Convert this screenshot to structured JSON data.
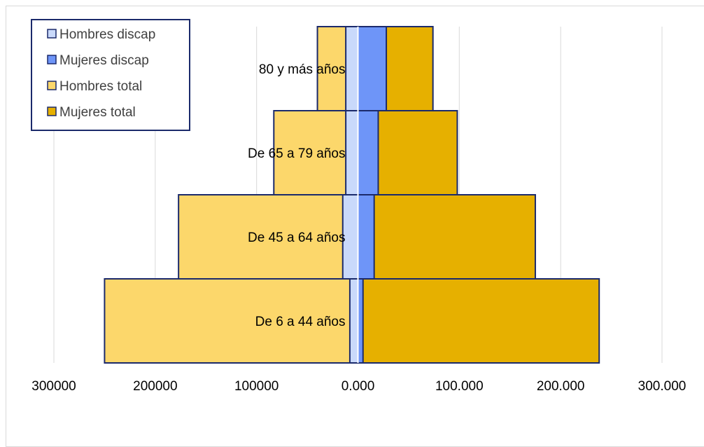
{
  "chart_data": {
    "type": "bar",
    "orientation": "horizontal",
    "layout": "population-pyramid",
    "categories": [
      "De 6 a 44 años",
      "De 45 a 64 años",
      "De 65 a 79 años",
      "80 y más años"
    ],
    "series": [
      {
        "name": "Hombres discap",
        "values": [
          8000,
          15000,
          12000,
          12000
        ],
        "side": "left",
        "color": "#c9d9fb"
      },
      {
        "name": "Mujeres discap",
        "values": [
          5000,
          16000,
          20000,
          28000
        ],
        "side": "right",
        "color": "#6e95f8"
      },
      {
        "name": "Hombres total",
        "values": [
          250000,
          177000,
          83000,
          40000
        ],
        "side": "left",
        "color": "#fcd76b"
      },
      {
        "name": "Mujeres total",
        "values": [
          238000,
          175000,
          98000,
          74000
        ],
        "side": "right",
        "color": "#e6b000"
      }
    ],
    "xlim": [
      -300000,
      300000
    ],
    "x_ticks": [
      -300000,
      -200000,
      -100000,
      0,
      100000,
      200000,
      300000
    ],
    "x_tick_labels": [
      "300000",
      "200000",
      "100000",
      "0.000",
      "100.000",
      "200.000",
      "300.000"
    ],
    "grid": true,
    "legend_position": "top-left",
    "title": "",
    "xlabel": "",
    "ylabel": ""
  }
}
